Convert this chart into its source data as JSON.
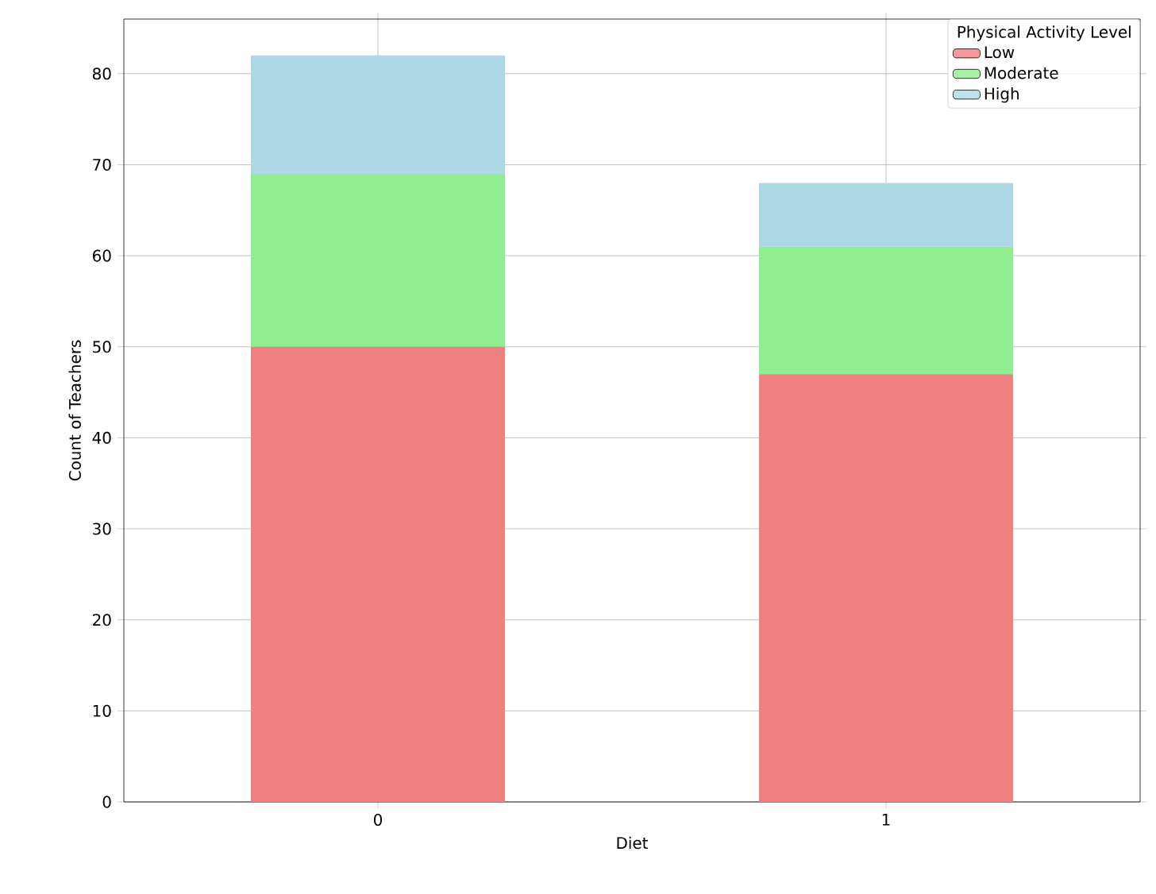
{
  "chart_data": {
    "type": "bar",
    "stacked": true,
    "xlabel": "Diet",
    "ylabel": "Count of Teachers",
    "legend_title": "Physical Activity Level",
    "legend": "top right",
    "grid": true,
    "categories": [
      "0",
      "1"
    ],
    "series": [
      {
        "name": "Low",
        "color": "#f08080",
        "values": [
          50,
          47
        ]
      },
      {
        "name": "Moderate",
        "color": "#90ee90",
        "values": [
          19,
          14
        ]
      },
      {
        "name": "High",
        "color": "#add8e6",
        "values": [
          13,
          7
        ]
      }
    ],
    "ylim": [
      0,
      86
    ],
    "yticks": [
      0,
      10,
      20,
      30,
      40,
      50,
      60,
      70,
      80
    ]
  }
}
